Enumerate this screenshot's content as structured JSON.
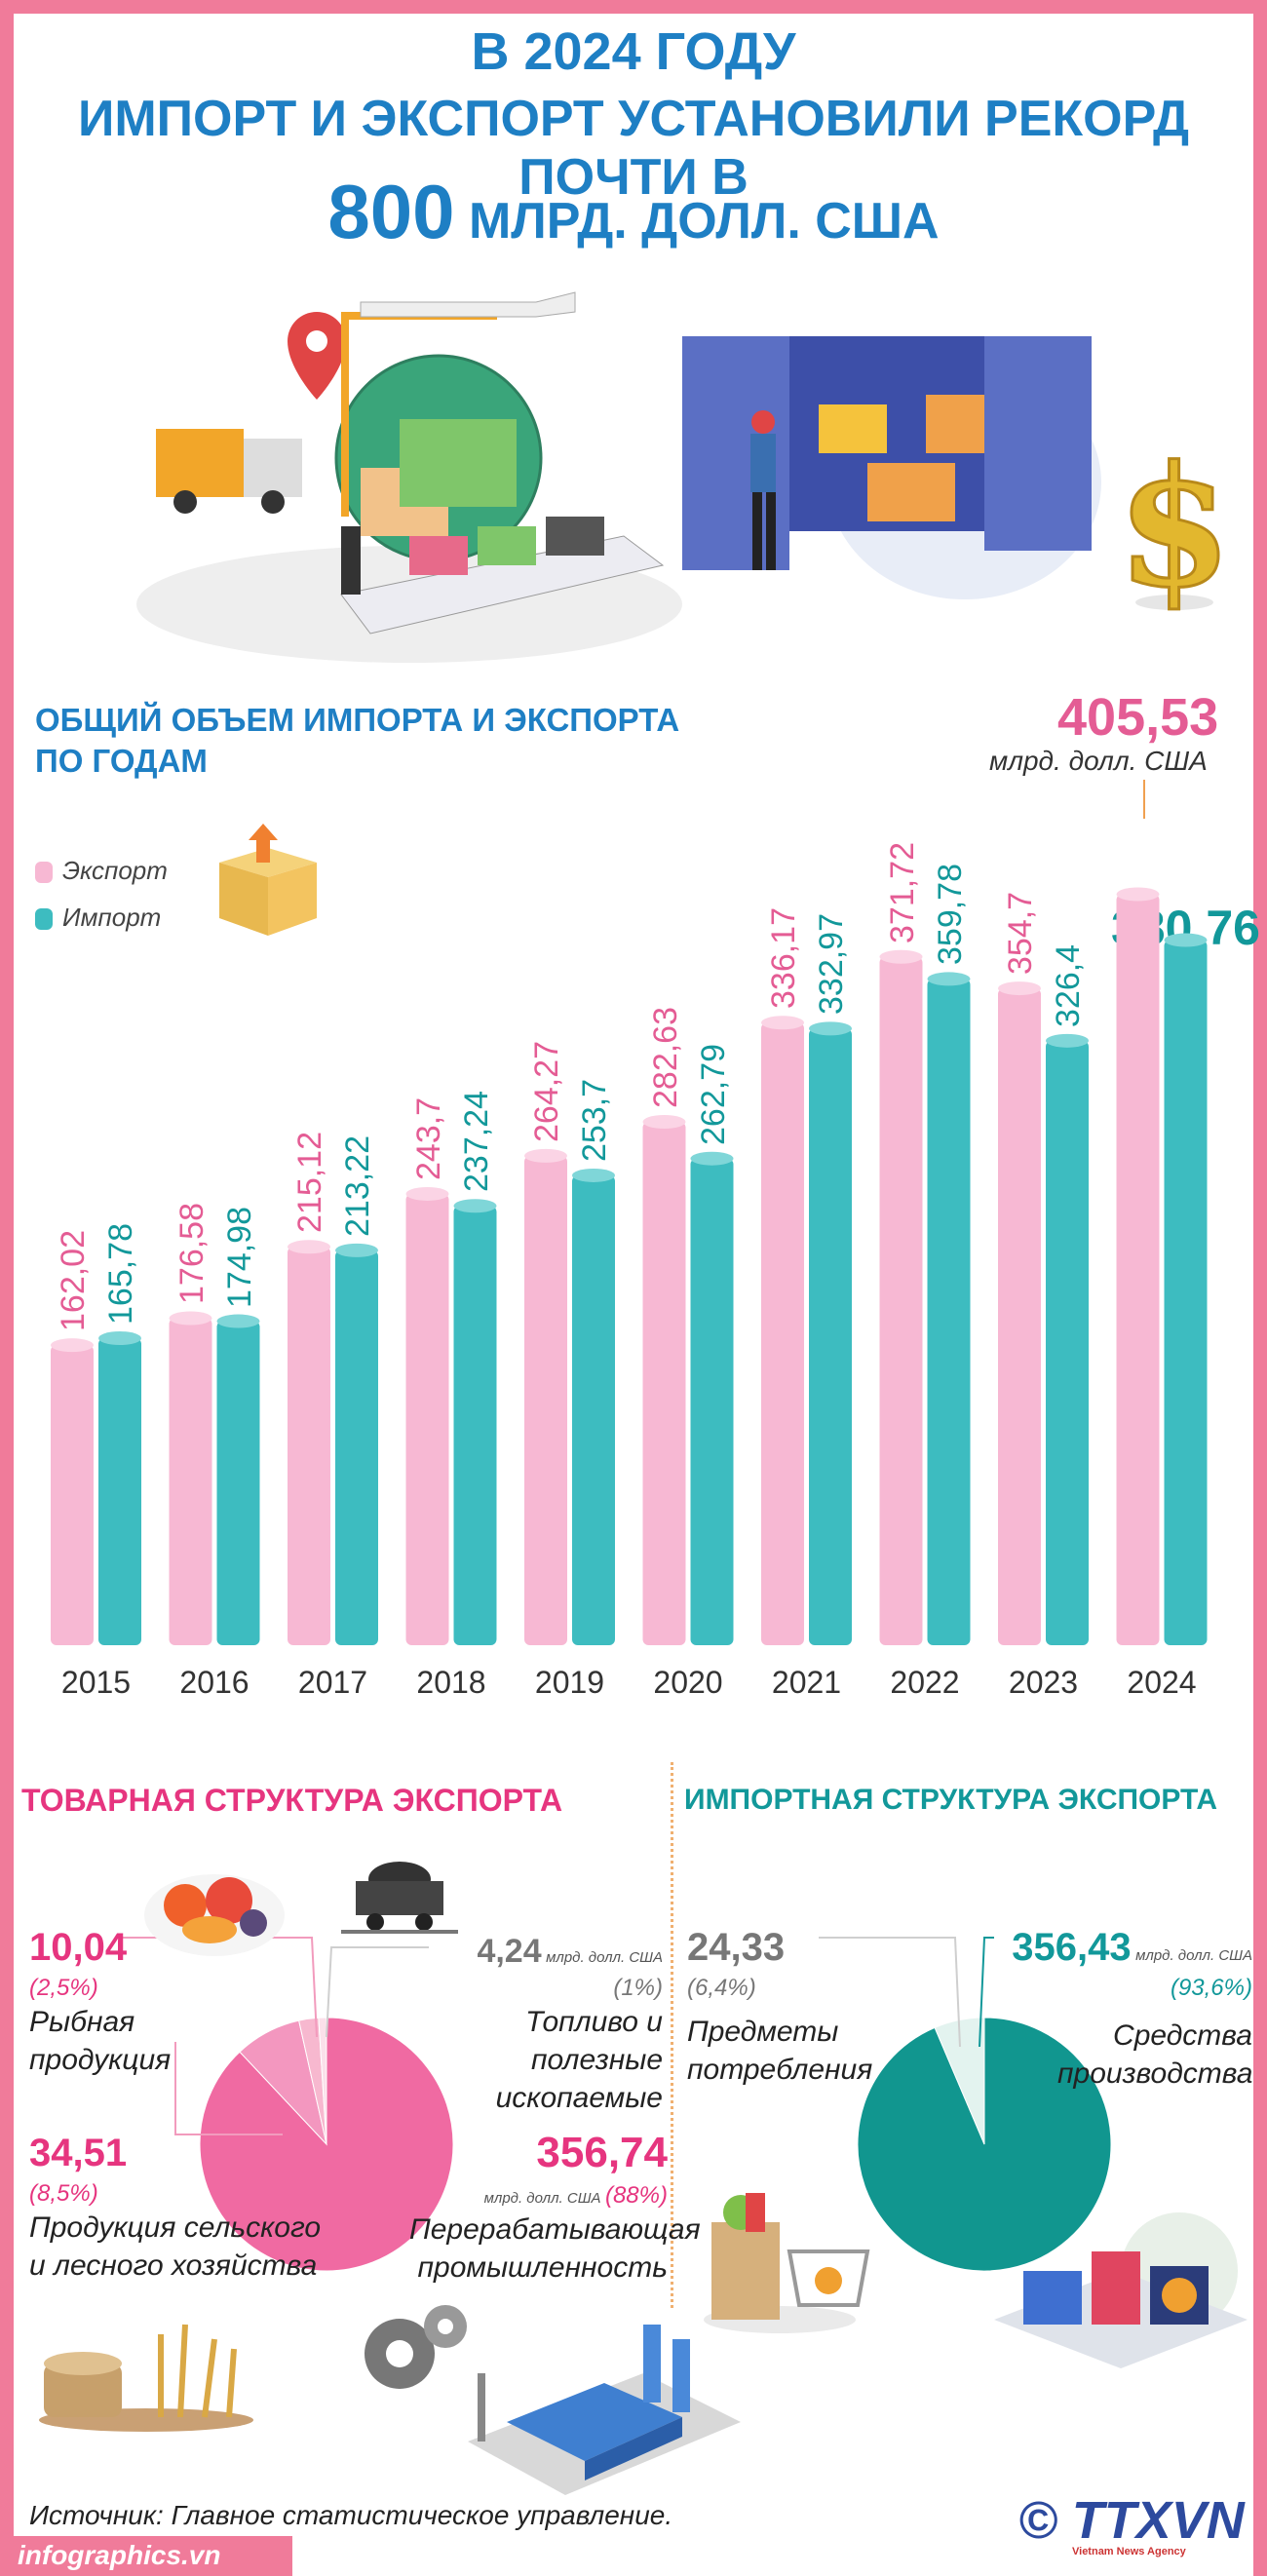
{
  "header": {
    "line1": "В 2024 ГОДУ",
    "line2": "ИМПОРТ И ЭКСПОРТ УСТАНОВИЛИ РЕКОРД ПОЧТИ В",
    "line3_big": "800",
    "line3_small": " МЛРД. ДОЛЛ. США"
  },
  "colors": {
    "export": "#f7b8d3",
    "import": "#3dbcc0",
    "accent_blue": "#1e7fc4",
    "accent_pink": "#e6357f",
    "accent_teal": "#12989a"
  },
  "chart_section": {
    "title_line1": "ОБЩИЙ ОБЪЕМ ИМПОРТА И ЭКСПОРТА",
    "title_line2": "ПО ГОДАМ",
    "legend_export": "Экспорт",
    "legend_import": "Импорт",
    "highlight_export_value": "405,53",
    "highlight_unit": "млрд. долл. США",
    "highlight_import_value": "380,76"
  },
  "chart_data": {
    "type": "bar",
    "categories": [
      "2015",
      "2016",
      "2017",
      "2018",
      "2019",
      "2020",
      "2021",
      "2022",
      "2023",
      "2024"
    ],
    "series": [
      {
        "name": "Экспорт",
        "values": [
          162.02,
          176.58,
          215.12,
          243.7,
          264.27,
          282.63,
          336.17,
          371.72,
          354.7,
          405.53
        ],
        "labels": [
          "162,02",
          "176,58",
          "215,12",
          "243,7",
          "264,27",
          "282,63",
          "336,17",
          "371,72",
          "354,7",
          "405,53"
        ]
      },
      {
        "name": "Импорт",
        "values": [
          165.78,
          174.98,
          213.22,
          237.24,
          253.7,
          262.79,
          332.97,
          359.78,
          326.4,
          380.76
        ],
        "labels": [
          "165,78",
          "174,98",
          "213,22",
          "237,24",
          "253,7",
          "262,79",
          "332,97",
          "359,78",
          "326,4",
          "380,76"
        ]
      }
    ],
    "unit": "млрд. долл. США"
  },
  "export_structure": {
    "title": "ТОВАРНАЯ СТРУКТУРА ЭКСПОРТА",
    "items": [
      {
        "value": "10,04",
        "pct": "(2,5%)",
        "label": "Рыбная продукция",
        "share": 2.5,
        "color": "#f7b8cf"
      },
      {
        "value": "4,24",
        "unit": "млрд. долл. США",
        "pct": "(1%)",
        "label": "Топливо и полезные ископаемые",
        "share": 1,
        "color": "#fbe0ea"
      },
      {
        "value": "356,74",
        "unit": "млрд. долл. США",
        "pct": "(88%)",
        "label": "Перерабатывающая промышленность",
        "share": 88,
        "color": "#f06aa2"
      },
      {
        "value": "34,51",
        "pct": "(8,5%)",
        "label": "Продукция сельского и лесного хозяйства",
        "share": 8.5,
        "color": "#f397bf"
      }
    ]
  },
  "import_structure": {
    "title": "ИМПОРТНАЯ СТРУКТУРА ЭКСПОРТА",
    "items": [
      {
        "value": "24,33",
        "pct": "(6,4%)",
        "label": "Предметы потребления",
        "share": 6.4,
        "color": "#e3f3ef"
      },
      {
        "value": "356,43",
        "unit": "млрд. долл. США",
        "pct": "(93,6%)",
        "label": "Средства производства",
        "share": 93.6,
        "color": "#11968f"
      }
    ]
  },
  "footer": {
    "source": "Источник: Главное статистическое управление.",
    "site": "infographics.vn",
    "logo": "© TTXVN",
    "agency": "Vietnam News Agency"
  }
}
